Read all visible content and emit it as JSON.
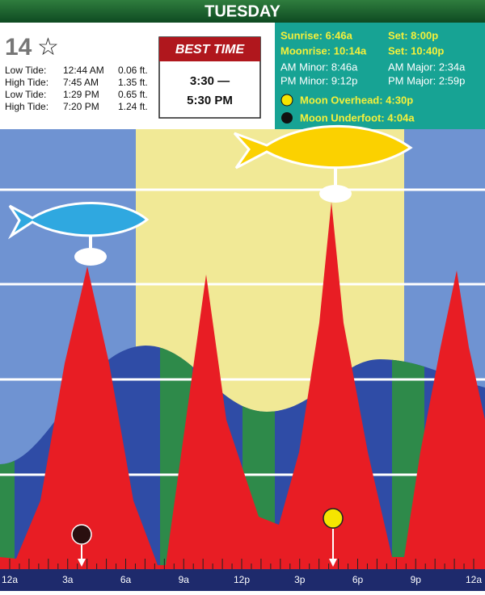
{
  "header": {
    "day": "TUESDAY"
  },
  "date": {
    "day": "14",
    "symbol": "☆"
  },
  "tides": [
    {
      "type": "Low Tide:",
      "time": "12:44 AM",
      "height": "0.06 ft."
    },
    {
      "type": "High Tide:",
      "time": "7:45 AM",
      "height": "1.35 ft."
    },
    {
      "type": "Low Tide:",
      "time": "1:29 PM",
      "height": "0.65 ft."
    },
    {
      "type": "High Tide:",
      "time": "7:20 PM",
      "height": "1.24 ft."
    }
  ],
  "best_time": {
    "title": "BEST TIME",
    "start": "3:30 —",
    "end": "5:30 PM"
  },
  "sun_moon": {
    "sunrise": "Sunrise: 6:46a",
    "sunset": "Set: 8:00p",
    "moonrise": "Moonrise: 10:14a",
    "moonset": "Set: 10:40p",
    "am_minor": "AM Minor: 8:46a",
    "am_major": "AM Major: 2:34a",
    "pm_minor": "PM Minor: 9:12p",
    "pm_major": "PM Major: 2:59p",
    "moon_overhead": "Moon Overhead: 4:30p",
    "moon_underfoot": "Moon Underfoot: 4:04a"
  },
  "axis_labels": [
    "12a",
    "3a",
    "6a",
    "9a",
    "12p",
    "3p",
    "6p",
    "9p",
    "12a"
  ]
}
